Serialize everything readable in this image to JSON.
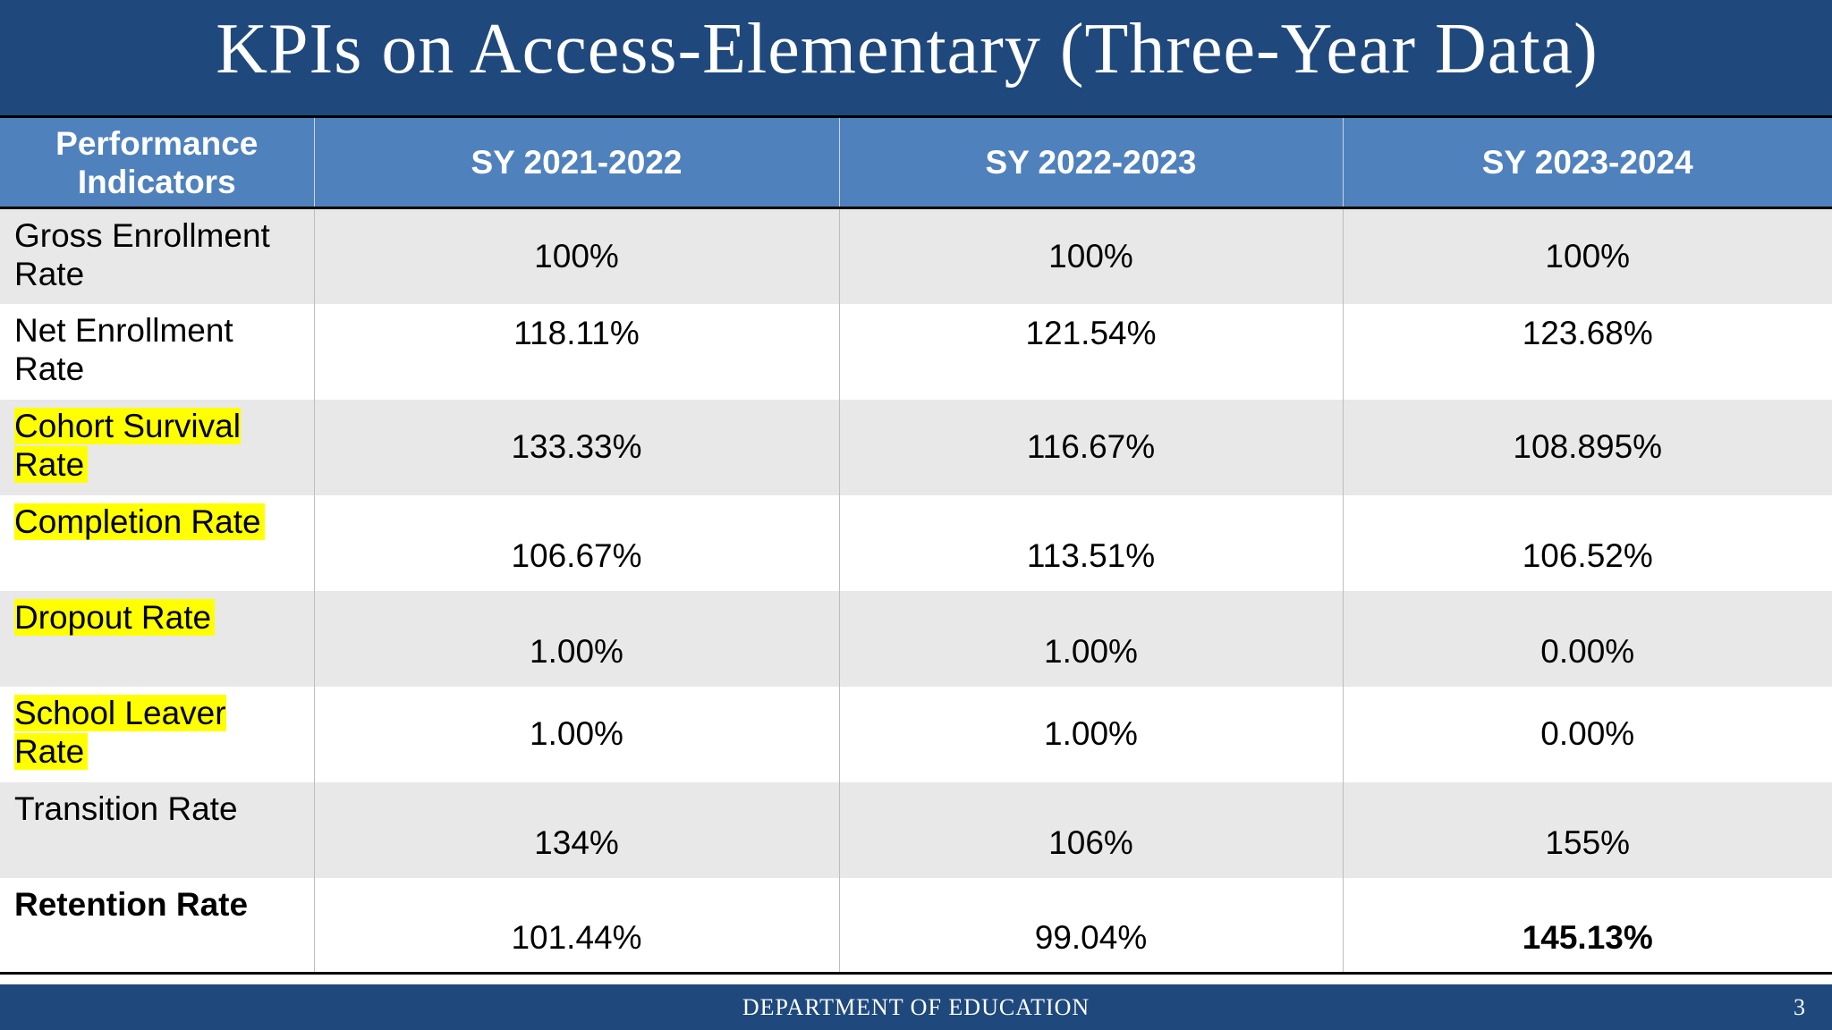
{
  "slide": {
    "title": "KPIs on Access-Elementary (Three-Year Data)",
    "footer": "DEPARTMENT OF EDUCATION",
    "page_number": "3"
  },
  "colors": {
    "header_bar": "#1f497d",
    "table_header": "#4f81bd",
    "highlight": "#ffff00",
    "row_alt": "#e8e8e8"
  },
  "table": {
    "headers": [
      "Performance Indicators",
      "SY 2021-2022",
      "SY 2022-2023",
      "SY 2023-2024"
    ],
    "rows": [
      {
        "indicator": "Gross Enrollment Rate",
        "values": [
          "100%",
          "100%",
          "100%"
        ]
      },
      {
        "indicator": "Net Enrollment Rate",
        "values": [
          "118.11%",
          "121.54%",
          "123.68%"
        ]
      },
      {
        "indicator": "Cohort Survival Rate",
        "values": [
          "133.33%",
          "116.67%",
          "108.895%"
        ]
      },
      {
        "indicator": "Completion Rate",
        "values": [
          "106.67%",
          "113.51%",
          "106.52%"
        ]
      },
      {
        "indicator": "Dropout Rate",
        "values": [
          "1.00%",
          "1.00%",
          "0.00%"
        ]
      },
      {
        "indicator": "School Leaver Rate",
        "values": [
          "1.00%",
          "1.00%",
          "0.00%"
        ]
      },
      {
        "indicator": "Transition Rate",
        "values": [
          "134%",
          "106%",
          "155%"
        ]
      },
      {
        "indicator": "Retention Rate",
        "values": [
          "101.44%",
          "99.04%",
          "145.13%"
        ]
      }
    ]
  }
}
